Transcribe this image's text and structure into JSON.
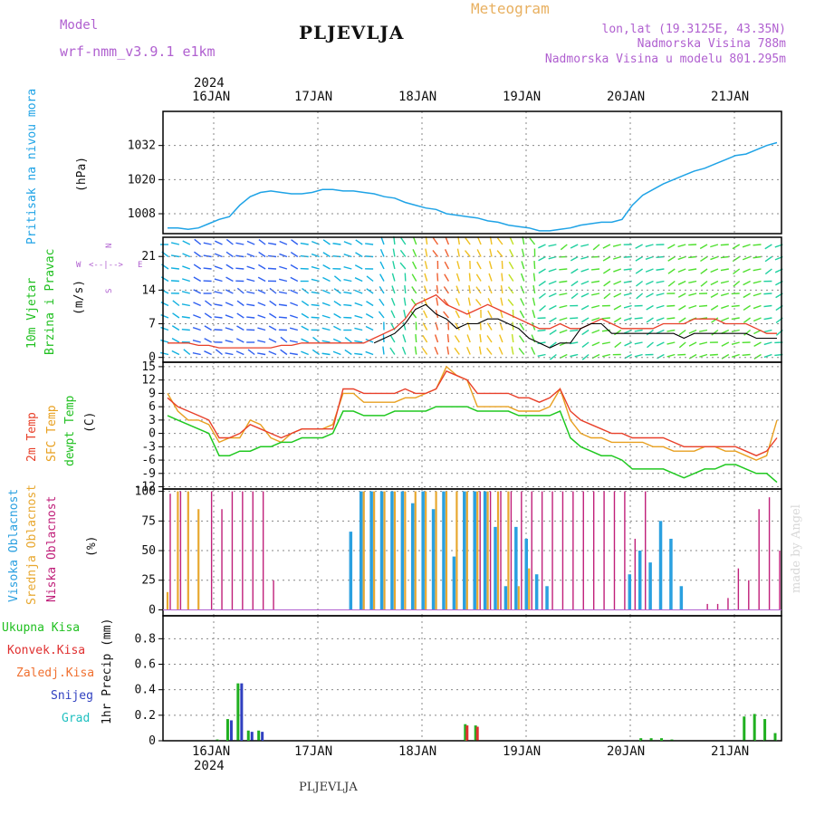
{
  "header": {
    "model_label": "Model",
    "model_name": "wrf-nmm_v3.9.1 e1km",
    "station": "PLJEVLJA",
    "meteogram": "Meteogram",
    "lonlat": "lon,lat (19.3125E, 43.35N)",
    "altitude": "Nadmorska Visina 788m",
    "model_altitude": "Nadmorska Visina u modelu 801.295m"
  },
  "footer": {
    "station": "PLJEVLJA",
    "signature": "made by Angel"
  },
  "time_axis": {
    "year": "2024",
    "days": [
      "16JAN",
      "17JAN",
      "18JAN",
      "19JAN",
      "20JAN",
      "21JAN"
    ]
  },
  "colors": {
    "pressure": "#1fa3e6",
    "wind_avg": "#000000",
    "wind_gust": "#e8402a",
    "temp2m": "#e8402a",
    "sfc": "#e8a020",
    "dewpt": "#20c820",
    "high_cloud": "#2aa0e0",
    "mid_cloud": "#e8a830",
    "low_cloud": "#c0207a",
    "rain_total": "#20b020",
    "rain_conv": "#e03030",
    "freezing": "#f07030",
    "snow": "#3040c0",
    "hail": "#20c0c0"
  },
  "panels": {
    "pressure": {
      "label1": "Pritisak na nivou mora",
      "unit": "(hPa)"
    },
    "wind": {
      "label1": "10m Vjetar",
      "label2": "Brzina i Pravac",
      "unit": "(m/s)",
      "compass_n": "N",
      "compass_s": "S",
      "compass_w": "W",
      "compass_e": "E"
    },
    "temp": {
      "label1": "2m Temp",
      "label2": "SFC Temp",
      "label3": "dewpt Temp",
      "unit": "(C)"
    },
    "cloud": {
      "label1": "Visoka Oblacnost",
      "label2": "Srednja Oblacnost",
      "label3": "Niska Oblacnost",
      "unit": "(%)"
    },
    "precip": {
      "label1": "Ukupna Kisa",
      "label2": "Konvek.Kisa",
      "label3": "Zaledj.Kisa",
      "label4": "Snijeg",
      "label5": "Grad",
      "unit": "1hr Precip (mm)"
    }
  },
  "chart_data": [
    {
      "type": "line",
      "ylabel": "(hPa)",
      "ylim": [
        1001,
        1044
      ],
      "yticks": [
        1008,
        1020,
        1032
      ],
      "grid": true,
      "x": [
        0,
        1,
        2,
        3,
        4,
        5,
        6,
        7,
        8,
        9,
        10,
        11,
        12,
        13,
        14,
        15,
        16,
        17,
        18,
        19,
        20,
        21,
        22,
        23,
        24,
        25,
        26,
        27,
        28,
        29,
        30,
        31,
        32,
        33,
        34,
        35,
        36,
        37,
        38,
        39,
        40,
        41,
        42,
        43,
        44,
        45,
        46,
        47,
        48,
        49,
        50,
        51,
        52,
        53,
        54,
        55,
        56,
        57,
        58,
        59
      ],
      "series": [
        {
          "values": [
            1003,
            1003,
            1002.5,
            1003,
            1004.5,
            1006,
            1007,
            1011,
            1014,
            1015.5,
            1016,
            1015.5,
            1015,
            1015,
            1015.5,
            1016.5,
            1016.5,
            1016,
            1016,
            1015.5,
            1015,
            1014,
            1013.5,
            1012,
            1011,
            1010,
            1009.5,
            1008,
            1007.5,
            1007,
            1006.5,
            1005.5,
            1005,
            1004,
            1003.5,
            1003,
            1002,
            1002,
            1002.5,
            1003,
            1004,
            1004.5,
            1005,
            1005,
            1006,
            1011,
            1014.5,
            1016.5,
            1018.5,
            1020,
            1021.5,
            1023,
            1024,
            1025.5,
            1027,
            1028.5,
            1029,
            1030.5,
            1032,
            1033
          ]
        }
      ]
    },
    {
      "type": "line",
      "ylabel": "(m/s)",
      "ylim": [
        -1,
        25
      ],
      "yticks": [
        0,
        7,
        14,
        21
      ],
      "grid": true,
      "series": [
        {
          "values": [
            null,
            null,
            null,
            null,
            null,
            null,
            null,
            null,
            null,
            null,
            null,
            null,
            null,
            null,
            null,
            null,
            null,
            null,
            null,
            null,
            3,
            4,
            5,
            7,
            10,
            11,
            9,
            8,
            6,
            7,
            7,
            8,
            8,
            7,
            6,
            4,
            3,
            2,
            3,
            3,
            6,
            7,
            7,
            5,
            5,
            5,
            5,
            5,
            5,
            5,
            4,
            5,
            5,
            5,
            5,
            5,
            5,
            4,
            4,
            4
          ]
        },
        {
          "values": [
            3,
            3,
            3,
            2.5,
            2.5,
            2,
            2,
            2,
            2,
            2,
            2,
            2.5,
            2.5,
            3,
            3,
            3,
            3,
            3,
            3,
            3,
            4,
            5,
            6,
            8,
            11,
            12,
            13,
            11,
            10,
            9,
            10,
            11,
            10,
            9,
            8,
            7,
            6,
            6,
            7,
            6,
            6,
            7,
            8,
            7,
            6,
            6,
            6,
            6,
            7,
            7,
            7,
            8,
            8,
            8,
            7,
            7,
            7,
            6,
            5,
            5
          ]
        }
      ]
    },
    {
      "type": "line",
      "ylabel": "(C)",
      "ylim": [
        -12.5,
        16
      ],
      "yticks": [
        -12,
        -9,
        -6,
        -3,
        0,
        3,
        6,
        9,
        12,
        15
      ],
      "grid": true,
      "series": [
        {
          "values": [
            8,
            6,
            5,
            4,
            3,
            -1,
            -1,
            0,
            2,
            1,
            0,
            -1,
            0,
            1,
            1,
            1,
            1,
            10,
            10,
            9,
            9,
            9,
            9,
            10,
            9,
            9,
            10,
            14,
            13,
            12,
            9,
            9,
            9,
            9,
            8,
            8,
            7,
            8,
            10,
            5,
            3,
            2,
            1,
            0,
            0,
            -1,
            -1,
            -1,
            -1,
            -2,
            -3,
            -3,
            -3,
            -3,
            -3,
            -3,
            -4,
            -5,
            -4,
            -1
          ]
        },
        {
          "values": [
            9,
            5,
            3,
            3,
            2,
            -2,
            -1,
            -1,
            3,
            2,
            -1,
            -2,
            0,
            1,
            1,
            1,
            2,
            9,
            9,
            7,
            7,
            7,
            7,
            8,
            8,
            9,
            10,
            15,
            13,
            12,
            6,
            6,
            6,
            6,
            5,
            5,
            5,
            6,
            10,
            3,
            0,
            -1,
            -1,
            -2,
            -2,
            -2,
            -2,
            -3,
            -3,
            -4,
            -4,
            -4,
            -3,
            -3,
            -4,
            -4,
            -5,
            -6,
            -5,
            3
          ]
        },
        {
          "values": [
            4,
            3,
            2,
            1,
            0,
            -5,
            -5,
            -4,
            -4,
            -3,
            -3,
            -2,
            -2,
            -1,
            -1,
            -1,
            0,
            5,
            5,
            4,
            4,
            4,
            5,
            5,
            5,
            5,
            6,
            6,
            6,
            6,
            5,
            5,
            5,
            5,
            4,
            4,
            4,
            4,
            5,
            -1,
            -3,
            -4,
            -5,
            -5,
            -6,
            -8,
            -8,
            -8,
            -8,
            -9,
            -10,
            -9,
            -8,
            -8,
            -7,
            -7,
            -8,
            -9,
            -9,
            -11
          ]
        }
      ]
    },
    {
      "type": "bar",
      "ylabel": "(%)",
      "ylim": [
        -5,
        102
      ],
      "yticks": [
        0,
        25,
        50,
        75,
        100
      ],
      "grid": true,
      "series": [
        {
          "values": [
            0,
            0,
            0,
            0,
            0,
            0,
            0,
            0,
            0,
            0,
            0,
            0,
            0,
            0,
            0,
            0,
            0,
            0,
            66,
            100,
            100,
            100,
            100,
            100,
            90,
            100,
            85,
            100,
            45,
            100,
            100,
            100,
            70,
            20,
            70,
            60,
            30,
            20,
            0,
            0,
            0,
            0,
            0,
            0,
            0,
            30,
            50,
            40,
            75,
            60,
            20,
            0,
            0,
            0,
            0,
            0,
            0,
            0,
            0,
            0
          ]
        },
        {
          "values": [
            15,
            100,
            100,
            85,
            0,
            0,
            0,
            0,
            0,
            0,
            0,
            0,
            0,
            0,
            0,
            0,
            0,
            0,
            0,
            100,
            100,
            100,
            100,
            100,
            100,
            100,
            100,
            100,
            100,
            100,
            100,
            100,
            100,
            100,
            20,
            35,
            0,
            0,
            0,
            0,
            0,
            0,
            0,
            0,
            0,
            0,
            0,
            0,
            0,
            0,
            0,
            0,
            0,
            0,
            0,
            0,
            0,
            0,
            0,
            0
          ]
        },
        {
          "values": [
            98,
            100,
            0,
            0,
            100,
            85,
            100,
            100,
            100,
            100,
            25,
            0,
            0,
            0,
            0,
            0,
            0,
            0,
            0,
            0,
            0,
            0,
            0,
            0,
            0,
            0,
            0,
            0,
            0,
            0,
            100,
            100,
            100,
            100,
            100,
            100,
            100,
            100,
            100,
            100,
            100,
            100,
            100,
            100,
            100,
            60,
            100,
            0,
            0,
            0,
            0,
            0,
            5,
            5,
            10,
            35,
            25,
            85,
            95,
            50
          ]
        }
      ]
    },
    {
      "type": "bar",
      "ylabel": "1hr Precip (mm)",
      "ylim": [
        0,
        0.98
      ],
      "yticks": [
        0,
        0.2,
        0.4,
        0.6,
        0.8
      ],
      "grid": true,
      "series": [
        {
          "values": [
            0,
            0,
            0,
            0,
            0,
            0.01,
            0.17,
            0.45,
            0.08,
            0.08,
            0,
            0,
            0,
            0,
            0,
            0,
            0,
            0,
            0,
            0,
            0,
            0,
            0,
            0,
            0,
            0,
            0,
            0,
            0,
            0.13,
            0.12,
            0,
            0,
            0,
            0,
            0,
            0,
            0,
            0,
            0,
            0,
            0,
            0,
            0,
            0,
            0,
            0.02,
            0.02,
            0.02,
            0.01,
            0,
            0,
            0,
            0,
            0,
            0,
            0.19,
            0.21,
            0.17,
            0.06
          ]
        },
        {
          "values": [
            0,
            0,
            0,
            0,
            0,
            0,
            0,
            0,
            0,
            0,
            0,
            0,
            0,
            0,
            0,
            0,
            0,
            0,
            0,
            0,
            0,
            0,
            0,
            0,
            0,
            0,
            0,
            0,
            0,
            0.12,
            0.11,
            0,
            0,
            0,
            0,
            0,
            0,
            0,
            0,
            0,
            0,
            0,
            0,
            0,
            0,
            0,
            0,
            0,
            0,
            0,
            0,
            0,
            0,
            0,
            0,
            0,
            0,
            0,
            0,
            0
          ]
        },
        {
          "values": [
            0,
            0,
            0,
            0,
            0,
            0,
            0.16,
            0.45,
            0.07,
            0.07,
            0,
            0,
            0,
            0,
            0,
            0,
            0,
            0,
            0,
            0,
            0,
            0,
            0,
            0,
            0,
            0,
            0,
            0,
            0,
            0,
            0,
            0,
            0,
            0,
            0,
            0,
            0,
            0,
            0,
            0,
            0,
            0,
            0,
            0,
            0,
            0,
            0,
            0,
            0,
            0,
            0,
            0,
            0,
            0,
            0,
            0,
            0,
            0,
            0,
            0
          ]
        }
      ]
    }
  ]
}
